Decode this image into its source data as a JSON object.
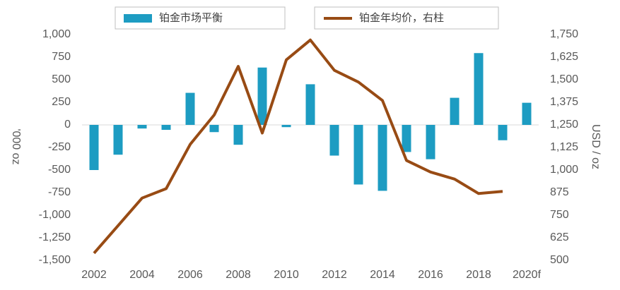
{
  "chart_data": {
    "type": "bar_line",
    "categories": [
      "2002",
      null,
      "2004",
      null,
      "2006",
      null,
      "2008",
      null,
      "2010",
      null,
      "2012",
      null,
      "2014",
      null,
      "2016",
      null,
      "2018",
      null,
      "2020f"
    ],
    "series": [
      {
        "name": "铂金市场平衡",
        "type": "bar",
        "color": "#1d9cc2",
        "values": [
          -500,
          -330,
          -40,
          -55,
          355,
          -80,
          -220,
          635,
          -25,
          450,
          -340,
          -660,
          -730,
          -300,
          -380,
          300,
          795,
          -170,
          245
        ]
      },
      {
        "name": "铂金年均价，右柱",
        "type": "line",
        "axis": "y2",
        "color": "#984b14",
        "values": [
          540,
          692,
          845,
          897,
          1142,
          1305,
          1574,
          1205,
          1610,
          1720,
          1552,
          1487,
          1385,
          1053,
          989,
          950,
          870,
          882,
          null
        ]
      }
    ],
    "y_label": "'000 oz",
    "y2_label": "USD / oz",
    "ylim": [
      -1500,
      1000
    ],
    "yticks": [
      {
        "value": -1500,
        "label": "-1,500"
      },
      {
        "value": -1250,
        "label": "-1,250"
      },
      {
        "value": -1000,
        "label": "-1,000"
      },
      -750,
      -500,
      -250,
      0,
      250,
      500,
      750,
      {
        "value": 1000,
        "label": "1,000"
      }
    ],
    "y2lim": [
      500,
      1750
    ],
    "y2ticks": [
      500,
      625,
      750,
      875,
      {
        "value": 1000,
        "label": "1,000"
      },
      {
        "value": 1125,
        "label": "1,125"
      },
      {
        "value": 1250,
        "label": "1,250"
      },
      {
        "value": 1375,
        "label": "1,375"
      },
      {
        "value": 1500,
        "label": "1,500"
      },
      {
        "value": 1625,
        "label": "1,625"
      },
      {
        "value": 1750,
        "label": "1,750"
      }
    ],
    "grid": false,
    "legend": "top"
  }
}
